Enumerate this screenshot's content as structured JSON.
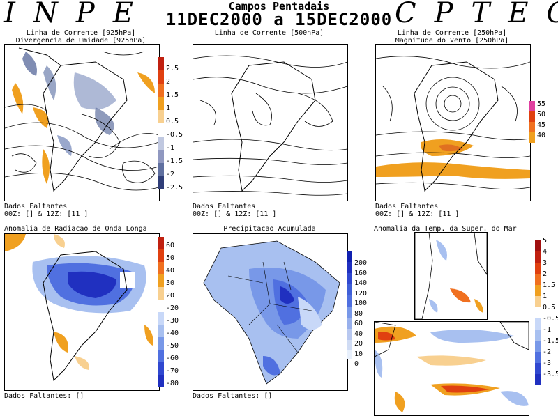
{
  "header": {
    "left_logo": "INPE",
    "right_logo": "CPTEC",
    "title": "Campos Pentadais",
    "period": "11DEC2000 a 15DEC2000"
  },
  "panels": {
    "p925": {
      "title_line1": "Linha de Corrente [925hPa]",
      "title_line2": "Divergencia de Umidade [925hPa]",
      "footer_line1": "Dados Faltantes",
      "footer_line2": "00Z: [] & 12Z: [11 ]",
      "colorbar": [
        "2.5",
        "2",
        "1.5",
        "1",
        "0.5",
        "-0.5",
        "-1",
        "-1.5",
        "-2",
        "-2.5"
      ]
    },
    "p500": {
      "title_line1": "Linha de Corrente [500hPa]",
      "footer_line1": "Dados Faltantes",
      "footer_line2": "00Z: [] & 12Z: [11 ]"
    },
    "p250": {
      "title_line1": "Linha de Corrente [250hPa]",
      "title_line2": "Magnitude do Vento [250hPa]",
      "footer_line1": "Dados Faltantes",
      "footer_line2": "00Z: [] & 12Z: [11 ]",
      "colorbar": [
        "55",
        "50",
        "45",
        "40"
      ]
    },
    "olr": {
      "title_line1": "Anomalia de Radiacao de Onda Longa",
      "footer_line1": "Dados Faltantes: []",
      "colorbar": [
        "60",
        "50",
        "40",
        "30",
        "20",
        "-20",
        "-30",
        "-40",
        "-50",
        "-60",
        "-70",
        "-80"
      ]
    },
    "precip": {
      "title_line1": "Precipitacao Acumulada",
      "footer_line1": "Dados Faltantes: []",
      "colorbar": [
        "200",
        "160",
        "140",
        "120",
        "100",
        "80",
        "60",
        "40",
        "20",
        "10",
        "0"
      ]
    },
    "sst": {
      "title_line1": "Anomalia da Temp. da Super. do Mar",
      "colorbar": [
        "5",
        "4",
        "3",
        "2",
        "1.5",
        "1",
        "0.5",
        "-0.5",
        "-1",
        "-1.5",
        "-2",
        "-3",
        "-3.5"
      ]
    }
  },
  "colors": {
    "orange": "#f0a020",
    "blue_dark": "#2030c0",
    "blue_light": "#a8c0f0",
    "red": "#d03010",
    "gray_blue": "#6070a0"
  }
}
